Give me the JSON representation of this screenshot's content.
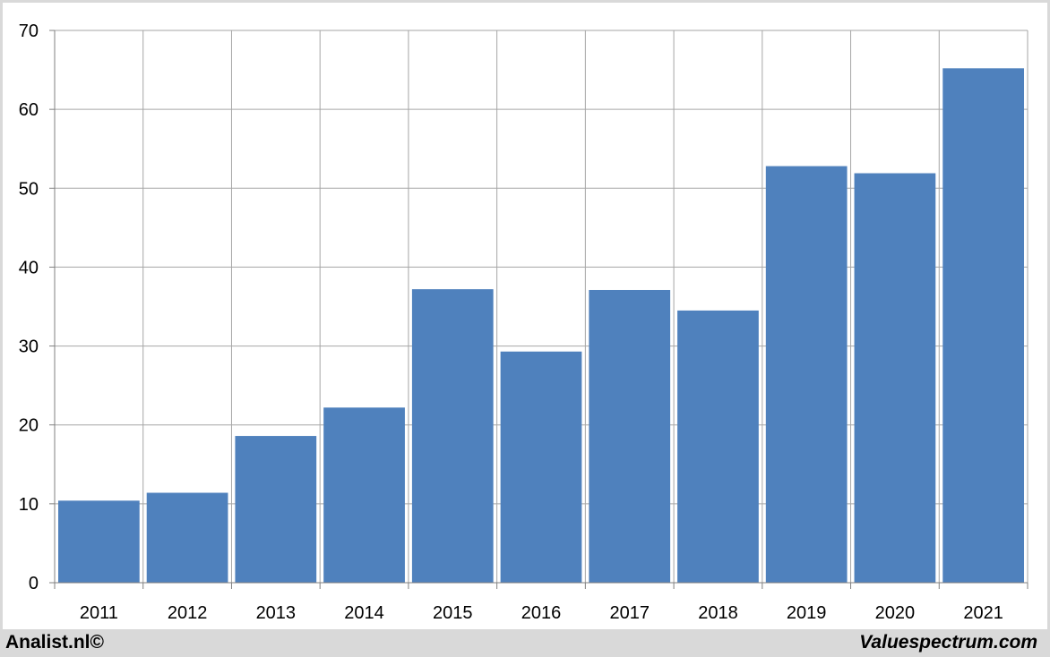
{
  "footer": {
    "left_text": "Analist.nl©",
    "right_text": "Valuespectrum.com"
  },
  "chart_data": {
    "type": "bar",
    "categories": [
      "2011",
      "2012",
      "2013",
      "2014",
      "2015",
      "2016",
      "2017",
      "2018",
      "2019",
      "2020",
      "2021"
    ],
    "values": [
      10.4,
      11.4,
      18.6,
      22.2,
      37.2,
      29.3,
      37.1,
      34.5,
      52.8,
      51.9,
      65.2
    ],
    "ylim": [
      0,
      70
    ],
    "yticks": [
      0,
      10,
      20,
      30,
      40,
      50,
      60,
      70
    ],
    "grid": true,
    "legend": "none",
    "bar_color": "#4f81bd",
    "grid_color": "#a6a6a6"
  }
}
